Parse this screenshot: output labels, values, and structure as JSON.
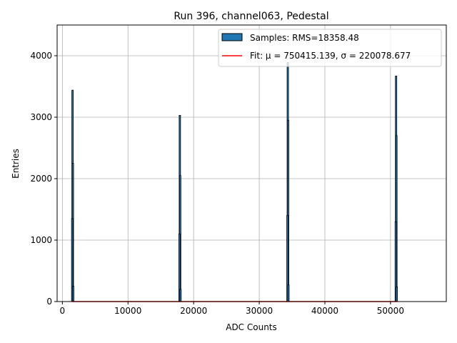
{
  "chart_data": {
    "type": "bar",
    "title": "Run 396, channel063, Pedestal",
    "xlabel": "ADC Counts",
    "ylabel": "Entries",
    "xlim": [
      -800,
      58500
    ],
    "ylim": [
      0,
      4500
    ],
    "xticks": [
      0,
      10000,
      20000,
      30000,
      40000,
      50000
    ],
    "yticks": [
      0,
      1000,
      2000,
      3000,
      4000
    ],
    "grid": true,
    "legend_position": "top-right",
    "legend": {
      "samples_label": "Samples: RMS=18358.48",
      "fit_label": "Fit: μ = 750415.139, σ = 220078.677"
    },
    "colors": {
      "bar_fill": "#1f77b4",
      "bar_edge": "#000000",
      "fit_line": "#ff0000",
      "grid": "#b0b0b0"
    },
    "series": [
      {
        "name": "Samples: RMS=18358.48",
        "type": "histogram",
        "bins": [
          {
            "x": 1550,
            "count": 3440
          },
          {
            "x": 1600,
            "count": 2250
          },
          {
            "x": 1500,
            "count": 1350
          },
          {
            "x": 1650,
            "count": 250
          },
          {
            "x": 17900,
            "count": 3030
          },
          {
            "x": 17950,
            "count": 2050
          },
          {
            "x": 17850,
            "count": 1100
          },
          {
            "x": 18000,
            "count": 200
          },
          {
            "x": 34350,
            "count": 3890
          },
          {
            "x": 34400,
            "count": 2950
          },
          {
            "x": 34300,
            "count": 1400
          },
          {
            "x": 34450,
            "count": 270
          },
          {
            "x": 50850,
            "count": 3670
          },
          {
            "x": 50900,
            "count": 2700
          },
          {
            "x": 50800,
            "count": 1300
          },
          {
            "x": 50950,
            "count": 240
          }
        ]
      },
      {
        "name": "Fit: μ = 750415.139, σ = 220078.677",
        "type": "line",
        "x": [
          1500,
          51000
        ],
        "y": [
          0,
          0
        ]
      }
    ]
  }
}
